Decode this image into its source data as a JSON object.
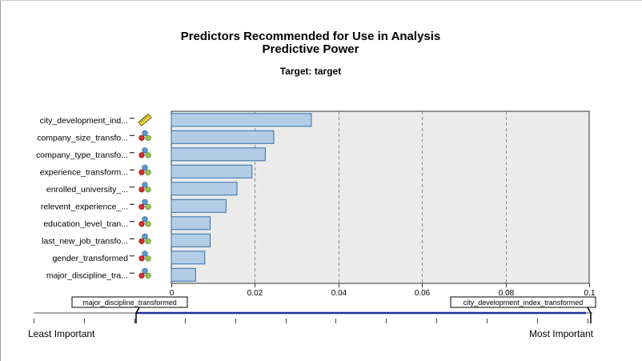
{
  "title": {
    "line1": "Predictors Recommended for Use in Analysis",
    "line2": "Predictive Power"
  },
  "subtitle": "Target: target",
  "chart_data": {
    "type": "bar",
    "orientation": "horizontal",
    "categories": [
      "city_development_ind...",
      "company_size_transfo...",
      "company_type_transfo...",
      "experience_transform...",
      "enrolled_university_...",
      "relevent_experience_...",
      "education_level_tran...",
      "last_new_job_transfo...",
      "gender_transformed",
      "major_discipline_tra..."
    ],
    "category_types": [
      "continuous",
      "nominal",
      "nominal",
      "nominal",
      "nominal",
      "nominal",
      "nominal",
      "nominal",
      "nominal",
      "nominal"
    ],
    "values": [
      0.0335,
      0.0245,
      0.0225,
      0.0193,
      0.0157,
      0.0131,
      0.0093,
      0.0093,
      0.008,
      0.0058
    ],
    "xlim": [
      0,
      0.1
    ],
    "xticks": [
      0,
      0.02,
      0.04,
      0.06,
      0.08,
      0.1
    ],
    "grid": "vertical-dashed",
    "bar_color": "#b4cde6",
    "bar_border": "#2e6ea8",
    "plot_background": "#ebebeb"
  },
  "importance_scale": {
    "least_label": "Least Important",
    "most_label": "Most Important",
    "least_variable": "major_discipline_transformed",
    "most_variable": "city_development_index_transformed",
    "line_color": "#1f2f9c"
  }
}
